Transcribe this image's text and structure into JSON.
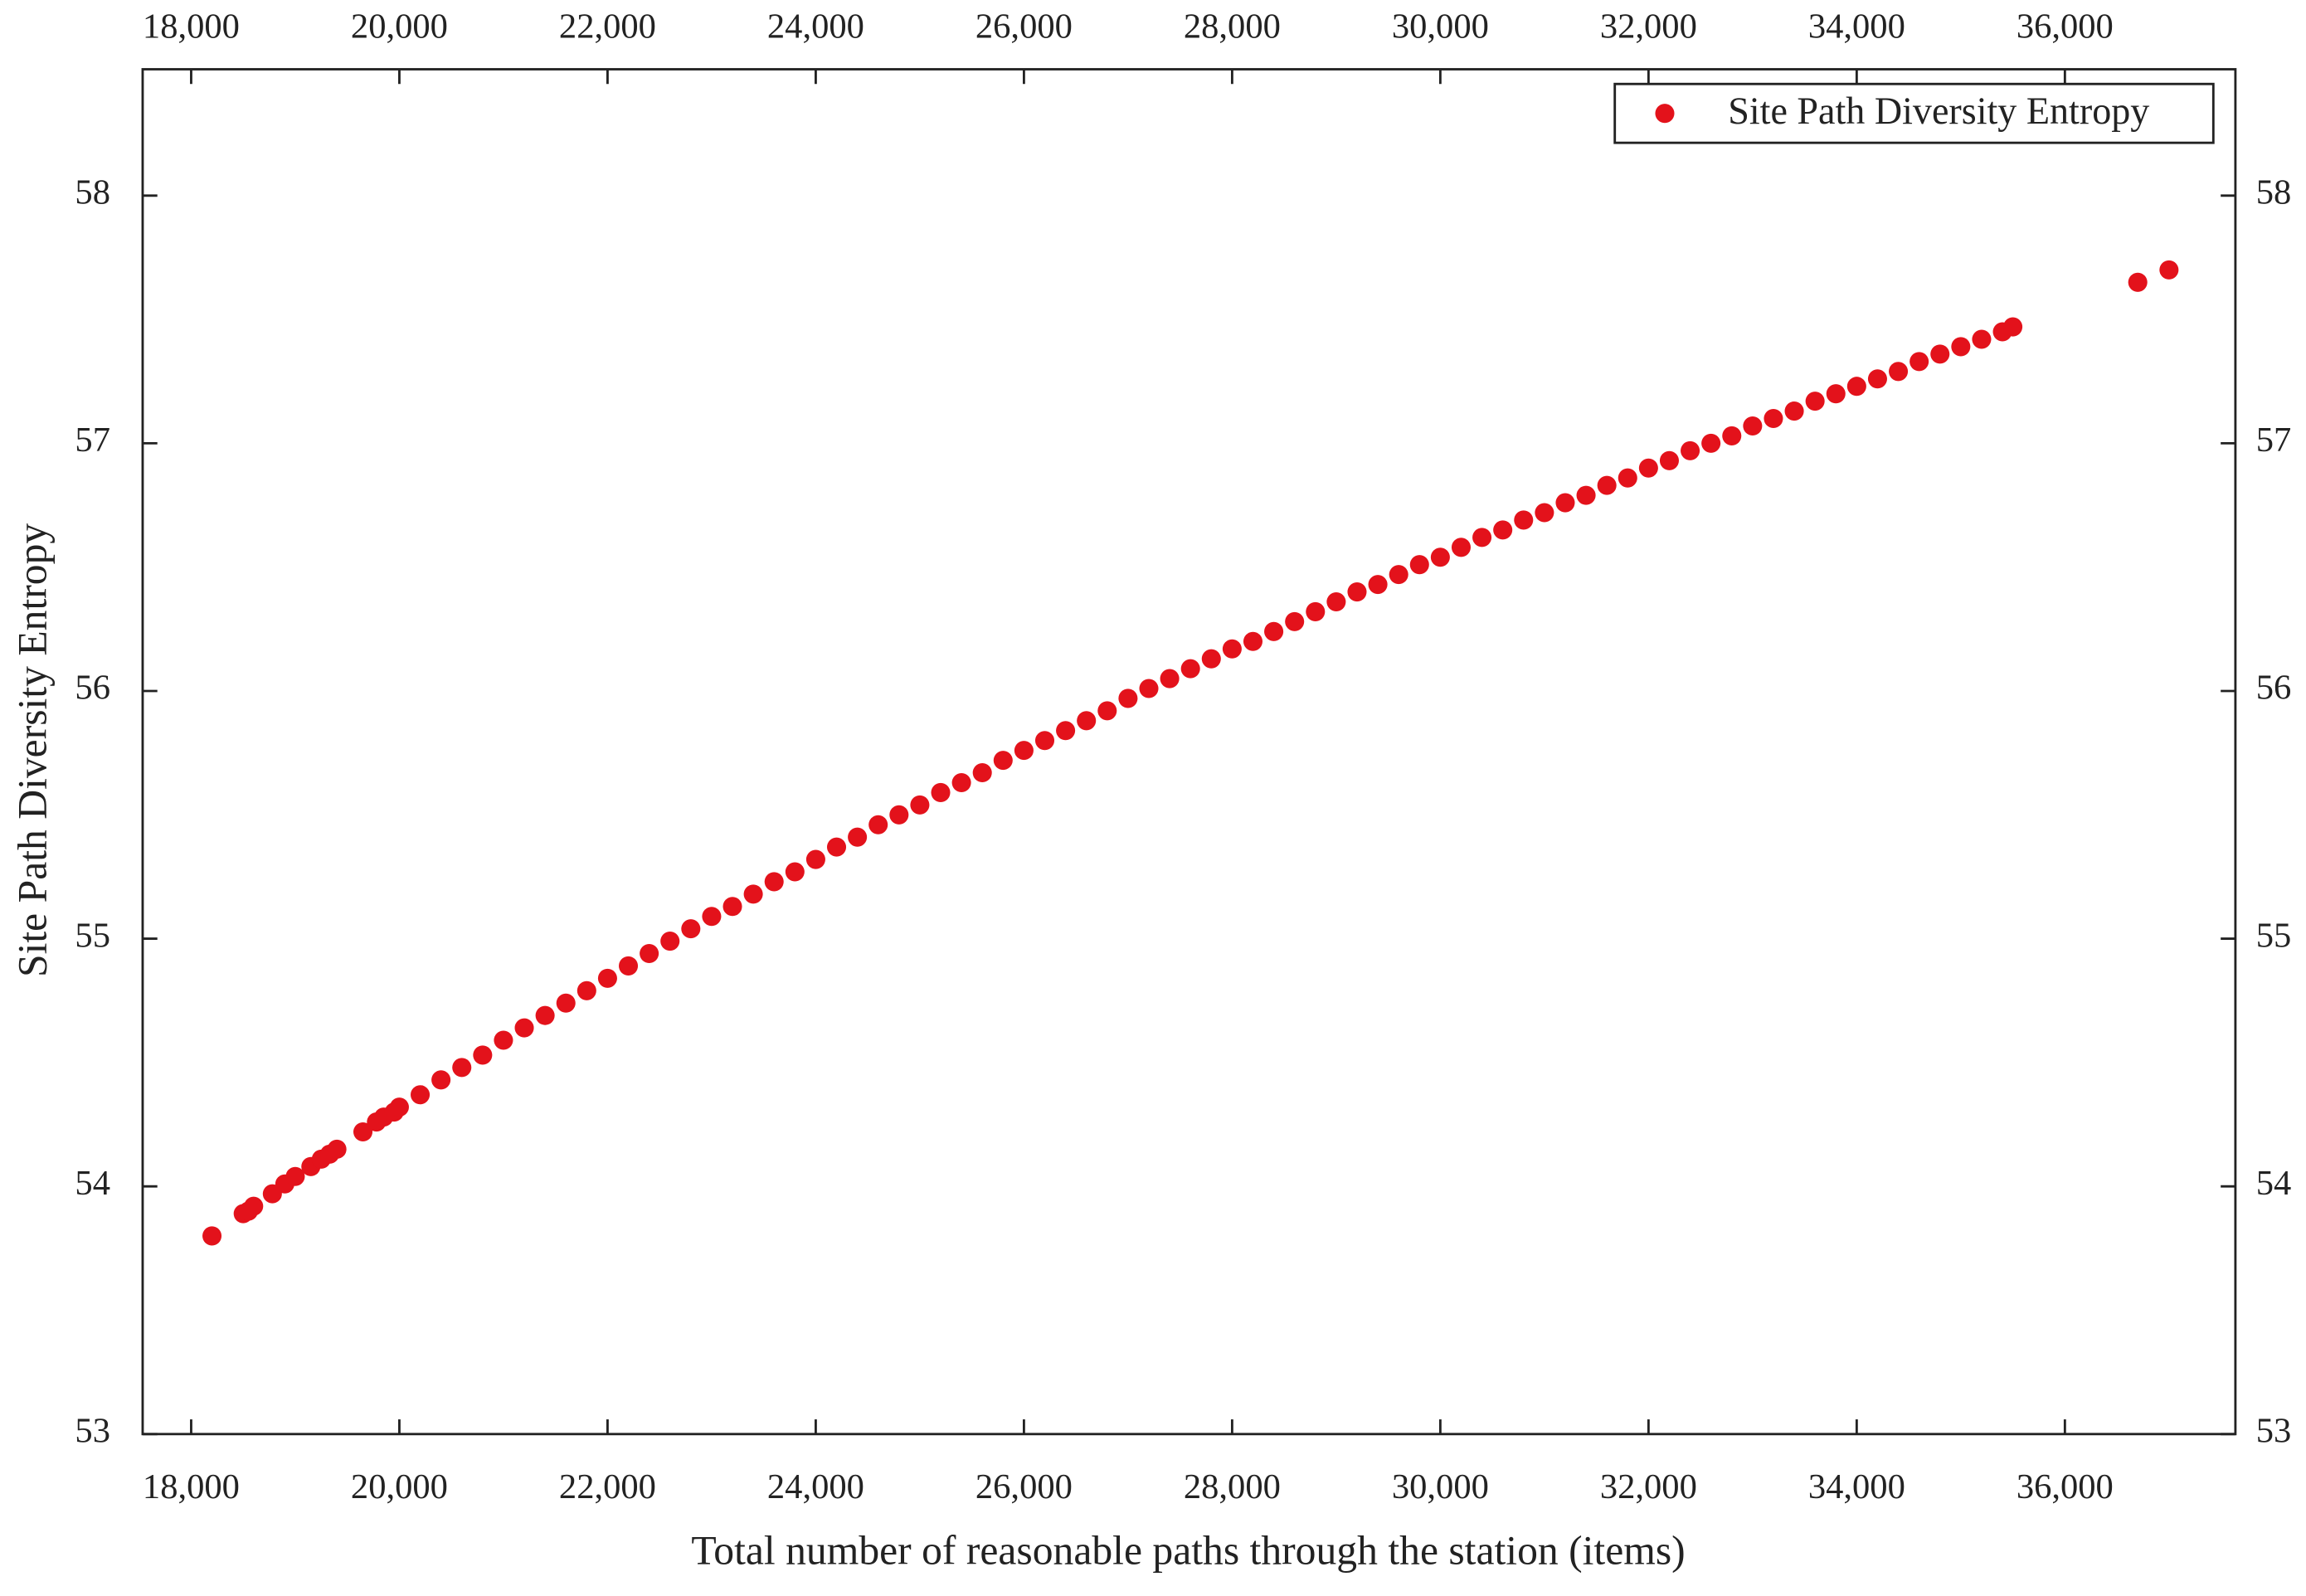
{
  "chart_data": {
    "type": "scatter",
    "x_label": "Total number of reasonable paths through the station (items)",
    "y_label": "Site Path Diversity Entropy",
    "x": [
      18200,
      18500,
      18550,
      18600,
      18780,
      18900,
      19000,
      19150,
      19250,
      19330,
      19400,
      19650,
      19780,
      19850,
      19950,
      20000,
      20200,
      20400,
      20600,
      20800,
      21000,
      21200,
      21400,
      21600,
      21800,
      22000,
      22200,
      22400,
      22600,
      22800,
      23000,
      23200,
      23400,
      23600,
      23800,
      24000,
      24200,
      24400,
      24600,
      24800,
      25000,
      25200,
      25400,
      25600,
      25800,
      26000,
      26200,
      26400,
      26600,
      26800,
      27000,
      27200,
      27400,
      27600,
      27800,
      28000,
      28200,
      28400,
      28600,
      28800,
      29000,
      29200,
      29400,
      29600,
      29800,
      30000,
      30200,
      30400,
      30600,
      30800,
      31000,
      31200,
      31400,
      31600,
      31800,
      32000,
      32200,
      32400,
      32600,
      32800,
      33000,
      33200,
      33400,
      33600,
      33800,
      34000,
      34200,
      34400,
      34600,
      34800,
      35000,
      35200,
      35400,
      35500,
      36700,
      37000
    ],
    "series": [
      {
        "name": "Site Path Diversity Entropy",
        "color": "#e3121b",
        "values": [
          53.8,
          53.89,
          53.9,
          53.92,
          53.97,
          54.01,
          54.04,
          54.08,
          54.11,
          54.13,
          54.15,
          54.22,
          54.26,
          54.28,
          54.3,
          54.32,
          54.37,
          54.43,
          54.48,
          54.53,
          54.59,
          54.64,
          54.69,
          54.74,
          54.79,
          54.84,
          54.89,
          54.94,
          54.99,
          55.04,
          55.09,
          55.13,
          55.18,
          55.23,
          55.27,
          55.32,
          55.37,
          55.41,
          55.46,
          55.5,
          55.54,
          55.59,
          55.63,
          55.67,
          55.72,
          55.76,
          55.8,
          55.84,
          55.88,
          55.92,
          55.97,
          56.01,
          56.05,
          56.09,
          56.13,
          56.17,
          56.2,
          56.24,
          56.28,
          56.32,
          56.36,
          56.4,
          56.43,
          56.47,
          56.51,
          56.54,
          56.58,
          56.62,
          56.65,
          56.69,
          56.72,
          56.76,
          56.79,
          56.83,
          56.86,
          56.9,
          56.93,
          56.97,
          57.0,
          57.03,
          57.07,
          57.1,
          57.13,
          57.17,
          57.2,
          57.23,
          57.26,
          57.29,
          57.33,
          57.36,
          57.39,
          57.42,
          57.45,
          57.47,
          57.65,
          57.7
        ]
      }
    ],
    "xlim": [
      17534,
      37638
    ],
    "ylim": [
      53,
      58.51
    ],
    "xticks": [
      {
        "value": 18000,
        "label": "18,000"
      },
      {
        "value": 20000,
        "label": "20,000"
      },
      {
        "value": 22000,
        "label": "22,000"
      },
      {
        "value": 24000,
        "label": "24,000"
      },
      {
        "value": 26000,
        "label": "26,000"
      },
      {
        "value": 28000,
        "label": "28,000"
      },
      {
        "value": 30000,
        "label": "30,000"
      },
      {
        "value": 32000,
        "label": "32,000"
      },
      {
        "value": 34000,
        "label": "34,000"
      },
      {
        "value": 36000,
        "label": "36,000"
      }
    ],
    "yticks": [
      53,
      54,
      55,
      56,
      57,
      58
    ],
    "legend": "upper right"
  }
}
